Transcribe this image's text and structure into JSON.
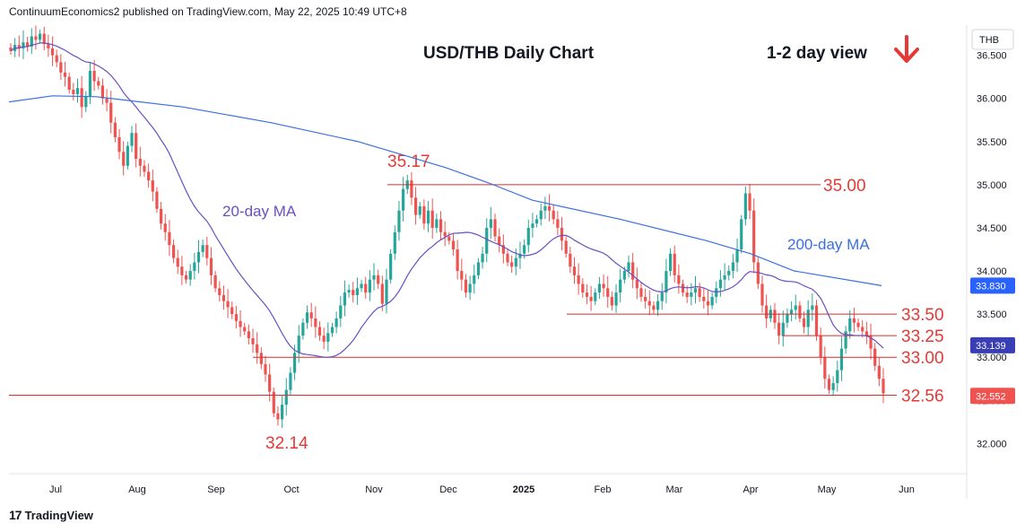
{
  "header": {
    "attribution": "ContinuumEconomics2 published on TradingView.com, May 22, 2025 10:49 UTC+8"
  },
  "footer": {
    "logo_text": "TradingView"
  },
  "annotations": {
    "title": "USD/THB Daily Chart",
    "view": "1-2 day view",
    "ma20_label": "20-day MA",
    "ma200_label": "200-day MA"
  },
  "colors": {
    "up": "#26a69a",
    "down": "#ef5350",
    "level_line": "#d32f2f",
    "level_text": "#e53935",
    "ma20": "#6a4fc4",
    "ma200": "#3a6fe0",
    "axis_text": "#131722",
    "price_badge": "#2962ff",
    "current_badge": "#ef5350",
    "ma20_badge": "#3a3eb5"
  },
  "chart_data": {
    "type": "candlestick",
    "symbol": "THB",
    "title": "USD/THB Daily Chart",
    "x_labels": [
      "Jul",
      "Aug",
      "Sep",
      "Oct",
      "Nov",
      "Dec",
      "2025",
      "Feb",
      "Mar",
      "Apr",
      "May",
      "Jun"
    ],
    "y_ticks": [
      "32.000",
      "32.500",
      "33.000",
      "33.500",
      "34.000",
      "34.500",
      "35.000",
      "35.500",
      "36.000",
      "36.500"
    ],
    "ylim": [
      31.65,
      36.85
    ],
    "grid": false,
    "levels": [
      {
        "label": "35.00",
        "value": 35.0
      },
      {
        "label": "33.50",
        "value": 33.5
      },
      {
        "label": "33.25",
        "value": 33.25
      },
      {
        "label": "33.00",
        "value": 33.0
      },
      {
        "label": "32.56",
        "value": 32.56
      }
    ],
    "annotated_points": [
      {
        "label": "35.17",
        "value": 35.17,
        "date": "Nov"
      },
      {
        "label": "32.14",
        "value": 32.14,
        "date": "Oct"
      }
    ],
    "axis_badges": [
      {
        "label": "33.830",
        "series": "200-day MA"
      },
      {
        "label": "33.139",
        "series": "20-day MA"
      },
      {
        "label": "32.552",
        "series": "last price"
      }
    ],
    "trend_arrow": "down",
    "closes": [
      36.55,
      36.62,
      36.58,
      36.65,
      36.6,
      36.72,
      36.68,
      36.75,
      36.63,
      36.58,
      36.5,
      36.42,
      36.3,
      36.25,
      36.1,
      36.05,
      36.12,
      35.9,
      36.02,
      36.32,
      36.2,
      36.15,
      36.0,
      35.95,
      35.72,
      35.55,
      35.38,
      35.22,
      35.45,
      35.6,
      35.3,
      35.22,
      35.15,
      35.05,
      34.92,
      34.72,
      34.55,
      34.45,
      34.3,
      34.15,
      34.05,
      33.95,
      33.9,
      34.0,
      34.1,
      34.22,
      34.3,
      34.15,
      33.95,
      33.8,
      33.72,
      33.65,
      33.58,
      33.5,
      33.42,
      33.35,
      33.3,
      33.22,
      33.15,
      33.05,
      32.92,
      32.8,
      32.6,
      32.35,
      32.28,
      32.45,
      32.62,
      32.82,
      33.05,
      33.25,
      33.4,
      33.52,
      33.45,
      33.35,
      33.25,
      33.18,
      33.28,
      33.35,
      33.45,
      33.6,
      33.75,
      33.78,
      33.72,
      33.8,
      33.85,
      33.75,
      33.9,
      33.95,
      33.85,
      33.62,
      33.9,
      34.2,
      34.45,
      34.7,
      34.95,
      35.05,
      34.85,
      34.65,
      34.75,
      34.55,
      34.7,
      34.5,
      34.6,
      34.45,
      34.4,
      34.35,
      34.25,
      34.0,
      33.9,
      33.75,
      33.85,
      33.95,
      34.1,
      34.2,
      34.5,
      34.6,
      34.4,
      34.3,
      34.2,
      34.1,
      34.05,
      34.15,
      34.2,
      34.3,
      34.5,
      34.55,
      34.6,
      34.7,
      34.75,
      34.7,
      34.6,
      34.5,
      34.35,
      34.2,
      34.05,
      33.95,
      33.85,
      33.75,
      33.7,
      33.65,
      33.75,
      33.85,
      33.8,
      33.7,
      33.6,
      33.75,
      33.9,
      34.0,
      34.1,
      33.9,
      33.8,
      33.7,
      33.65,
      33.6,
      33.55,
      33.65,
      33.75,
      34.0,
      34.2,
      33.95,
      33.85,
      33.75,
      33.7,
      33.75,
      33.8,
      33.7,
      33.65,
      33.6,
      33.7,
      33.8,
      33.9,
      33.95,
      34.0,
      34.1,
      34.25,
      34.6,
      34.9,
      34.7,
      34.1,
      33.85,
      33.6,
      33.45,
      33.55,
      33.4,
      33.25,
      33.4,
      33.5,
      33.55,
      33.6,
      33.45,
      33.35,
      33.55,
      33.6,
      33.25,
      33.0,
      32.75,
      32.62,
      32.7,
      32.85,
      33.1,
      33.3,
      33.45,
      33.4,
      33.35,
      33.3,
      33.25,
      33.1,
      32.9,
      32.75,
      32.58
    ]
  }
}
